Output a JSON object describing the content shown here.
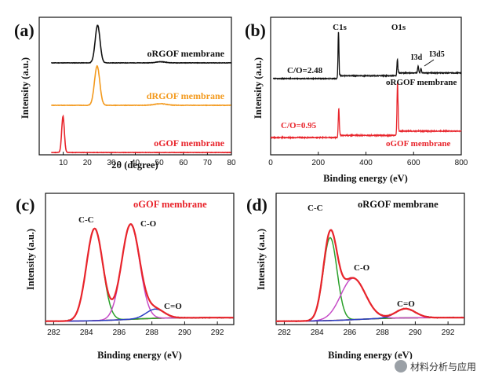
{
  "watermark": {
    "text": "材料分析与应用",
    "icon": "wechat-logo-icon"
  },
  "chart_data": [
    {
      "panel_label": "(a)",
      "type": "line",
      "xlabel": "2θ (degree)",
      "ylabel": "Intensity (a.u.)",
      "xlim": [
        0,
        80
      ],
      "xticks": [
        10,
        20,
        30,
        40,
        50,
        60,
        70,
        80
      ],
      "series": [
        {
          "name": "oRGOF membrane",
          "color": "#111111",
          "peaks": [
            {
              "x": 24.3,
              "w": 1.0,
              "h": 1.0
            },
            {
              "x": 50.5,
              "w": 2.0,
              "h": 0.03
            }
          ]
        },
        {
          "name": "dRGOF membrane",
          "color": "#f39a1e",
          "peaks": [
            {
              "x": 24.1,
              "w": 1.1,
              "h": 1.0
            },
            {
              "x": 50.5,
              "w": 2.5,
              "h": 0.04
            }
          ]
        },
        {
          "name": "oGOF membrane",
          "color": "#e8242b",
          "peaks": [
            {
              "x": 9.9,
              "w": 0.55,
              "h": 1.0
            }
          ]
        }
      ]
    },
    {
      "panel_label": "(b)",
      "type": "line",
      "xlabel": "Binding energy (eV)",
      "ylabel": "Intensity (a.u.)",
      "xlim": [
        0,
        800
      ],
      "xticks": [
        0,
        200,
        400,
        600,
        800
      ],
      "peak_labels": [
        "C1s",
        "O1s",
        "I3d",
        "I3d5"
      ],
      "series": [
        {
          "name": "oRGOF membrane",
          "color": "#111111",
          "ratio_label": "C/O=2.48",
          "peaks": [
            {
              "x": 284.8,
              "w": 2.0,
              "h": 1.0
            },
            {
              "x": 532.0,
              "w": 2.0,
              "h": 0.35
            },
            {
              "x": 619.0,
              "w": 2.0,
              "h": 0.15
            },
            {
              "x": 631.0,
              "w": 2.0,
              "h": 0.1
            }
          ]
        },
        {
          "name": "oGOF membrane",
          "color": "#e8242b",
          "ratio_label": "C/O=0.95",
          "peaks": [
            {
              "x": 286.0,
              "w": 2.2,
              "h": 0.55
            },
            {
              "x": 532.5,
              "w": 2.2,
              "h": 1.0
            }
          ]
        }
      ]
    },
    {
      "panel_label": "(c)",
      "type": "line",
      "title": "oGOF membrane",
      "xlabel": "Binding energy (eV)",
      "ylabel": "Intensity (a.u.)",
      "xlim": [
        281.5,
        293
      ],
      "xticks": [
        282,
        284,
        286,
        288,
        290,
        292
      ],
      "components": [
        {
          "label": "C-C",
          "center": 284.5,
          "sigma": 0.5,
          "height": 1.0,
          "color": "#2aa02a"
        },
        {
          "label": "C-O",
          "center": 286.7,
          "sigma": 0.55,
          "height": 1.03,
          "color": "#c64bc7"
        },
        {
          "label": "C=O",
          "center": 288.2,
          "sigma": 0.55,
          "height": 0.1,
          "color": "#2b3fc4"
        }
      ],
      "envelope_color": "#e8242b",
      "baseline_color": "#8b1a1a"
    },
    {
      "panel_label": "(d)",
      "type": "line",
      "title": "oRGOF membrane",
      "xlabel": "Binding energy (eV)",
      "ylabel": "Intensity (a.u.)",
      "xlim": [
        281.5,
        293
      ],
      "xticks": [
        282,
        284,
        286,
        288,
        290,
        292
      ],
      "components": [
        {
          "label": "C-C",
          "center": 284.8,
          "sigma": 0.42,
          "height": 0.9,
          "color": "#2aa02a"
        },
        {
          "label": "C-O",
          "center": 286.2,
          "sigma": 0.75,
          "height": 0.45,
          "color": "#c64bc7"
        },
        {
          "label": "C=O",
          "center": 289.4,
          "sigma": 0.6,
          "height": 0.1,
          "color": "#2b3fc4"
        }
      ],
      "envelope_color": "#e8242b",
      "baseline_color": "#8b1a1a"
    }
  ]
}
